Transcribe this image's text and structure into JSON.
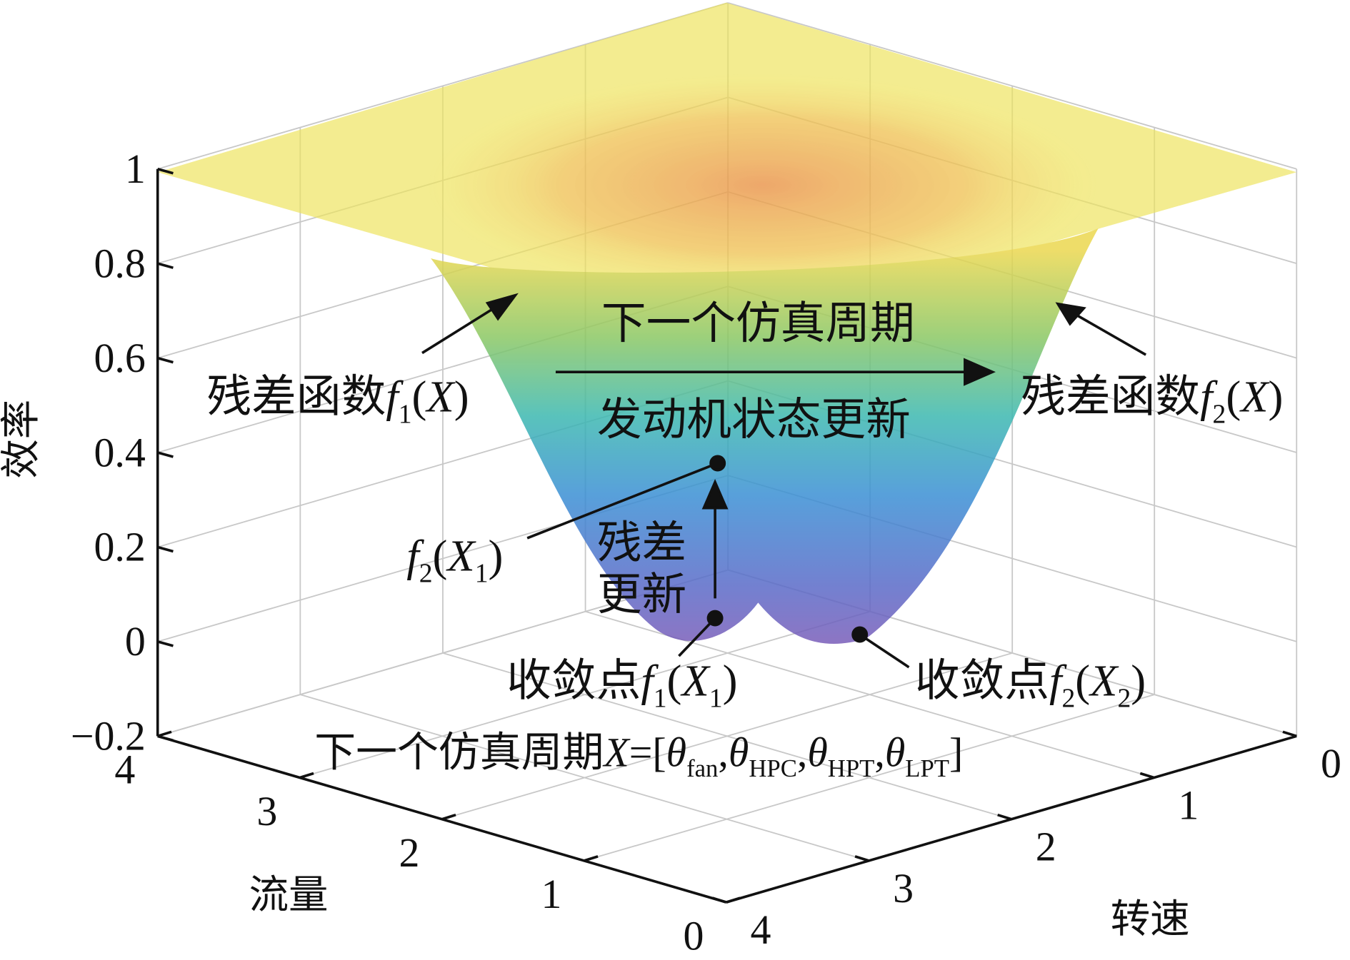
{
  "chart_data": {
    "type": "surface3d",
    "zlabel": "效率",
    "xlabel": "流量",
    "ylabel": "转速",
    "zlim": [
      -0.2,
      1
    ],
    "zticks": [
      {
        "value": -0.2,
        "label": "−0.2"
      },
      0,
      0.2,
      0.4,
      0.6,
      0.8,
      1
    ],
    "xlim": [
      0,
      4
    ],
    "xticks": [
      0,
      1,
      2,
      3,
      4
    ],
    "ylim": [
      0,
      4
    ],
    "yticks": [
      0,
      1,
      2,
      3,
      4
    ],
    "grid": true,
    "annotations": [
      [
        {
          "text": "下一个仿真周期"
        }
      ],
      [
        {
          "text": "发动机状态更新"
        }
      ],
      [
        {
          "text": "残差函数"
        },
        {
          "text": "f",
          "italic": true
        },
        {
          "text": "1",
          "sub": true
        },
        {
          "text": "("
        },
        {
          "text": "X",
          "italic": true
        },
        {
          "text": ")"
        }
      ],
      [
        {
          "text": "残差函数"
        },
        {
          "text": "f",
          "italic": true
        },
        {
          "text": "2",
          "sub": true
        },
        {
          "text": "("
        },
        {
          "text": "X",
          "italic": true
        },
        {
          "text": ")"
        }
      ],
      [
        {
          "text": "f",
          "italic": true
        },
        {
          "text": "2",
          "sub": true
        },
        {
          "text": "("
        },
        {
          "text": "X",
          "italic": true
        },
        {
          "text": "1",
          "sub": true
        },
        {
          "text": ")"
        }
      ],
      [
        {
          "text": "残差"
        }
      ],
      [
        {
          "text": "更新"
        }
      ],
      [
        {
          "text": "收敛点"
        },
        {
          "text": "f",
          "italic": true
        },
        {
          "text": "1",
          "sub": true
        },
        {
          "text": "("
        },
        {
          "text": "X",
          "italic": true
        },
        {
          "text": "1",
          "sub": true
        },
        {
          "text": ")"
        }
      ],
      [
        {
          "text": "收敛点"
        },
        {
          "text": "f",
          "italic": true
        },
        {
          "text": "2",
          "sub": true
        },
        {
          "text": "("
        },
        {
          "text": "X",
          "italic": true
        },
        {
          "text": "2",
          "sub": true
        },
        {
          "text": ")"
        }
      ],
      [
        {
          "text": "下一个仿真周期"
        },
        {
          "text": "X",
          "italic": true
        },
        {
          "text": "=["
        },
        {
          "text": "θ",
          "italic": true
        },
        {
          "text": "fan",
          "sub": true
        },
        {
          "text": ","
        },
        {
          "text": "θ",
          "italic": true
        },
        {
          "text": "HPC",
          "sub": true
        },
        {
          "text": ","
        },
        {
          "text": "θ",
          "italic": true
        },
        {
          "text": "HPT",
          "sub": true
        },
        {
          "text": ","
        },
        {
          "text": "θ",
          "italic": true
        },
        {
          "text": "LPT",
          "sub": true
        },
        {
          "text": "]"
        }
      ]
    ]
  }
}
